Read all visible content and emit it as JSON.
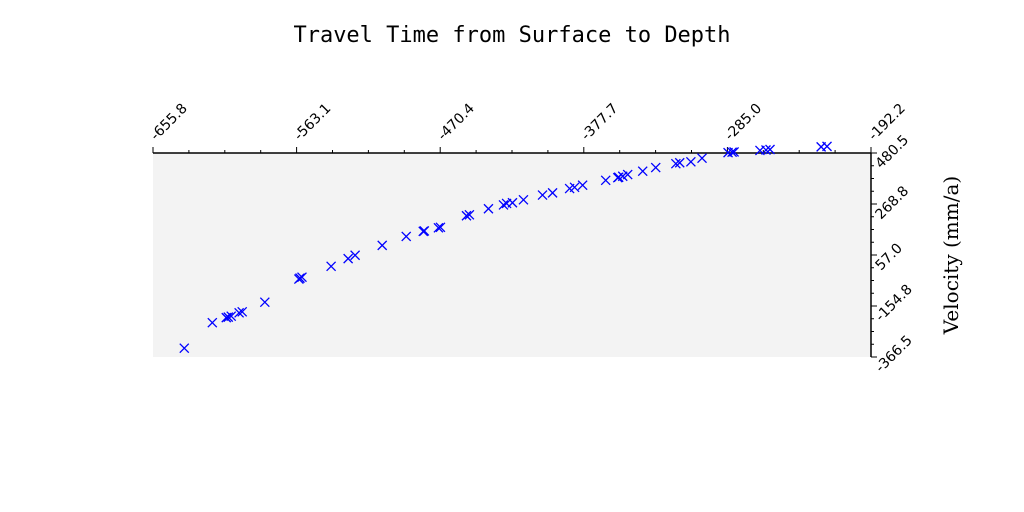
{
  "chart_data": {
    "type": "scatter",
    "title": "Travel Time from Surface to Depth",
    "xlabel": "",
    "ylabel": "Velocity (mm/a)",
    "xlim": [
      -655.8,
      -192.2
    ],
    "ylim": [
      -366.5,
      480.5
    ],
    "x_ticks": [
      "-655.8",
      "-563.1",
      "-470.4",
      "-377.7",
      "-285.0",
      "-192.2"
    ],
    "y_ticks": [
      "480.5",
      "268.8",
      "57.0",
      "-154.8",
      "-366.5"
    ],
    "x_axis_position": "top",
    "y_axis_position": "right",
    "grid": false,
    "marker": "x",
    "colors": {
      "series": "#0000ff",
      "plot_background": "#f3f3f3"
    },
    "series": [
      {
        "x": [
          -635.6,
          -617.5,
          -608.5,
          -607.2,
          -605.3,
          -600.2,
          -598.2,
          -583.6,
          -561.6,
          -560.9,
          -559.6,
          -540.8,
          -529.8,
          -525.3,
          -507.8,
          -492.3,
          -481.3,
          -480.6,
          -471.5,
          -470.2,
          -453.4,
          -451.5,
          -439.2,
          -429.5,
          -427.5,
          -423.7,
          -416.6,
          -404.3,
          -397.8,
          -386.8,
          -383.6,
          -378.4,
          -363.5,
          -355.7,
          -355.1,
          -352.5,
          -349.3,
          -339.6,
          -331.2,
          -318.2,
          -315.7,
          -308.5,
          -301.3,
          -284.5,
          -281.9,
          -280.6,
          -263.9,
          -260.0,
          -257.4,
          -224.4,
          -220.6
        ],
        "y": [
          -330,
          -224,
          -203,
          -201,
          -197,
          -183,
          -179,
          -139,
          -43,
          -39,
          -35,
          10,
          42,
          56,
          97,
          134,
          155,
          157,
          170,
          172,
          220,
          224,
          249,
          265,
          271,
          274,
          286,
          306,
          315,
          333,
          338,
          347,
          367,
          378,
          380,
          384,
          391,
          405,
          420,
          436,
          440,
          444,
          459,
          482,
          484,
          485,
          491,
          493,
          495,
          506,
          508
        ]
      }
    ]
  }
}
